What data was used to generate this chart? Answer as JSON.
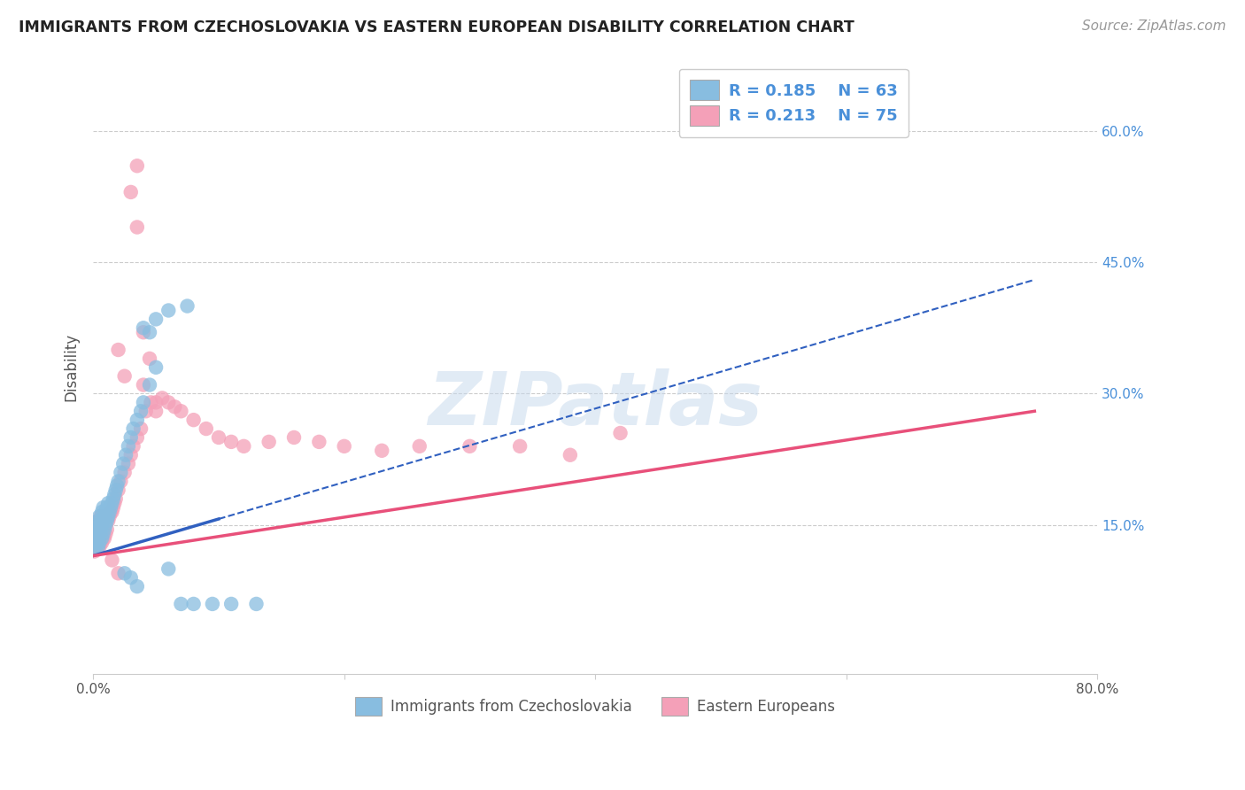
{
  "title": "IMMIGRANTS FROM CZECHOSLOVAKIA VS EASTERN EUROPEAN DISABILITY CORRELATION CHART",
  "source": "Source: ZipAtlas.com",
  "ylabel": "Disability",
  "xlim": [
    0.0,
    0.8
  ],
  "ylim": [
    -0.02,
    0.68
  ],
  "xticks": [
    0.0,
    0.2,
    0.4,
    0.6,
    0.8
  ],
  "xtick_labels": [
    "0.0%",
    "",
    "",
    "",
    "80.0%"
  ],
  "yticks": [
    0.15,
    0.3,
    0.45,
    0.6
  ],
  "ytick_labels": [
    "15.0%",
    "30.0%",
    "45.0%",
    "60.0%"
  ],
  "grid_color": "#cccccc",
  "background_color": "#ffffff",
  "watermark": "ZIPatlas",
  "legend_R1": "R = 0.185",
  "legend_N1": "N = 63",
  "legend_R2": "R = 0.213",
  "legend_N2": "N = 75",
  "blue_color": "#88bde0",
  "pink_color": "#f4a0b8",
  "blue_line_color": "#3060c0",
  "pink_line_color": "#e8507a",
  "label_blue": "Immigrants from Czechoslovakia",
  "label_pink": "Eastern Europeans",
  "blue_line_x0": 0.0,
  "blue_line_x_solid_end": 0.1,
  "blue_line_x_dashed_end": 0.75,
  "blue_line_y0": 0.115,
  "blue_line_slope": 0.42,
  "pink_line_x0": 0.0,
  "pink_line_x1": 0.75,
  "pink_line_y0": 0.115,
  "pink_line_slope": 0.22,
  "blue_x": [
    0.001,
    0.001,
    0.002,
    0.002,
    0.002,
    0.003,
    0.003,
    0.003,
    0.004,
    0.004,
    0.004,
    0.005,
    0.005,
    0.005,
    0.006,
    0.006,
    0.007,
    0.007,
    0.007,
    0.008,
    0.008,
    0.008,
    0.009,
    0.009,
    0.01,
    0.01,
    0.011,
    0.011,
    0.012,
    0.012,
    0.013,
    0.014,
    0.015,
    0.016,
    0.017,
    0.018,
    0.019,
    0.02,
    0.022,
    0.024,
    0.026,
    0.028,
    0.03,
    0.032,
    0.035,
    0.038,
    0.04,
    0.045,
    0.05,
    0.06,
    0.07,
    0.08,
    0.095,
    0.11,
    0.13,
    0.04,
    0.045,
    0.05,
    0.06,
    0.075,
    0.025,
    0.03,
    0.035
  ],
  "blue_y": [
    0.13,
    0.135,
    0.125,
    0.14,
    0.145,
    0.13,
    0.135,
    0.15,
    0.125,
    0.14,
    0.155,
    0.13,
    0.145,
    0.16,
    0.14,
    0.155,
    0.135,
    0.15,
    0.165,
    0.14,
    0.155,
    0.17,
    0.145,
    0.16,
    0.15,
    0.165,
    0.155,
    0.17,
    0.16,
    0.175,
    0.165,
    0.17,
    0.175,
    0.18,
    0.185,
    0.19,
    0.195,
    0.2,
    0.21,
    0.22,
    0.23,
    0.24,
    0.25,
    0.26,
    0.27,
    0.28,
    0.29,
    0.31,
    0.33,
    0.1,
    0.06,
    0.06,
    0.06,
    0.06,
    0.06,
    0.375,
    0.37,
    0.385,
    0.395,
    0.4,
    0.095,
    0.09,
    0.08
  ],
  "pink_x": [
    0.001,
    0.001,
    0.002,
    0.002,
    0.002,
    0.003,
    0.003,
    0.003,
    0.004,
    0.004,
    0.004,
    0.005,
    0.005,
    0.005,
    0.006,
    0.006,
    0.006,
    0.007,
    0.007,
    0.007,
    0.008,
    0.008,
    0.009,
    0.009,
    0.01,
    0.01,
    0.011,
    0.012,
    0.013,
    0.014,
    0.015,
    0.016,
    0.017,
    0.018,
    0.02,
    0.022,
    0.025,
    0.028,
    0.03,
    0.032,
    0.035,
    0.038,
    0.042,
    0.046,
    0.05,
    0.055,
    0.06,
    0.065,
    0.07,
    0.08,
    0.09,
    0.1,
    0.11,
    0.12,
    0.14,
    0.16,
    0.18,
    0.2,
    0.23,
    0.26,
    0.3,
    0.34,
    0.38,
    0.42,
    0.03,
    0.035,
    0.04,
    0.045,
    0.05,
    0.035,
    0.04,
    0.02,
    0.025,
    0.015,
    0.02
  ],
  "pink_y": [
    0.12,
    0.13,
    0.125,
    0.135,
    0.145,
    0.125,
    0.135,
    0.15,
    0.125,
    0.14,
    0.155,
    0.125,
    0.14,
    0.155,
    0.13,
    0.145,
    0.16,
    0.13,
    0.145,
    0.16,
    0.135,
    0.15,
    0.135,
    0.15,
    0.14,
    0.155,
    0.145,
    0.155,
    0.16,
    0.165,
    0.165,
    0.17,
    0.175,
    0.18,
    0.19,
    0.2,
    0.21,
    0.22,
    0.23,
    0.24,
    0.25,
    0.26,
    0.28,
    0.29,
    0.29,
    0.295,
    0.29,
    0.285,
    0.28,
    0.27,
    0.26,
    0.25,
    0.245,
    0.24,
    0.245,
    0.25,
    0.245,
    0.24,
    0.235,
    0.24,
    0.24,
    0.24,
    0.23,
    0.255,
    0.53,
    0.49,
    0.37,
    0.34,
    0.28,
    0.56,
    0.31,
    0.35,
    0.32,
    0.11,
    0.095
  ]
}
